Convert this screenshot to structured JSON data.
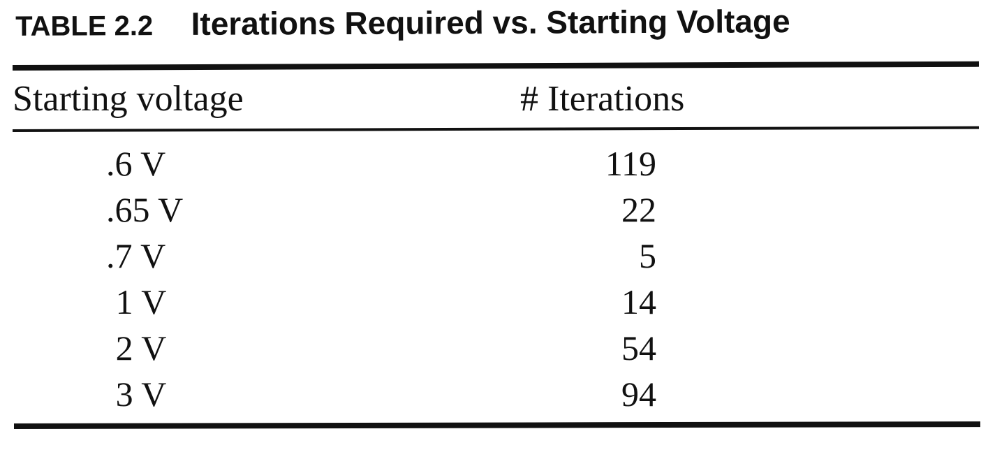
{
  "caption": {
    "label": "TABLE 2.2",
    "title": "Iterations Required vs. Starting Voltage"
  },
  "table": {
    "columns": [
      "Starting voltage",
      "# Iterations"
    ],
    "rows": [
      {
        "voltage": ".6 V",
        "iterations": "119"
      },
      {
        "voltage": ".65 V",
        "iterations": "22"
      },
      {
        "voltage": ".7 V",
        "iterations": "5"
      },
      {
        "voltage": "1 V",
        "iterations": "14"
      },
      {
        "voltage": "2 V",
        "iterations": "54"
      },
      {
        "voltage": "3 V",
        "iterations": "94"
      }
    ]
  }
}
